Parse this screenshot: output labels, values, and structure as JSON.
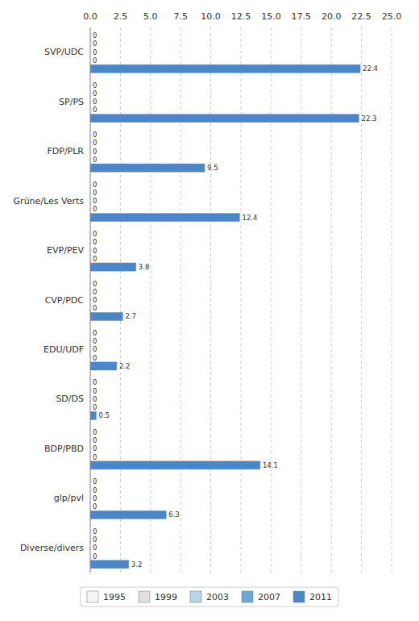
{
  "chart_data": {
    "type": "bar",
    "orientation": "horizontal",
    "categories": [
      "SVP/UDC",
      "SP/PS",
      "FDP/PLR",
      "Grüne/Les Verts",
      "EVP/PEV",
      "CVP/PDC",
      "EDU/UDF",
      "SD/DS",
      "BDP/PBD",
      "glp/pvl",
      "Diverse/divers"
    ],
    "series": [
      {
        "name": "1995",
        "color": "#f5f5f5",
        "values": [
          0,
          0,
          0,
          0,
          0,
          0,
          0,
          0,
          0,
          0,
          0
        ]
      },
      {
        "name": "1999",
        "color": "#e0e0e0",
        "values": [
          0,
          0,
          0,
          0,
          0,
          0,
          0,
          0,
          0,
          0,
          0
        ]
      },
      {
        "name": "2003",
        "color": "#b8d4e8",
        "values": [
          0,
          0,
          0,
          0,
          0,
          0,
          0,
          0,
          0,
          0,
          0
        ]
      },
      {
        "name": "2007",
        "color": "#6aaad4",
        "values": [
          0,
          0,
          0,
          0,
          0,
          0,
          0,
          0,
          0,
          0,
          0
        ]
      },
      {
        "name": "2011",
        "color": "#4a86c8",
        "values": [
          22.4,
          22.3,
          9.5,
          12.4,
          3.8,
          2.7,
          2.2,
          0.5,
          14.1,
          6.3,
          3.2
        ]
      }
    ],
    "xlim": [
      0,
      25
    ],
    "xticks": [
      {
        "value": 0,
        "label": "0.0"
      },
      2.5,
      {
        "value": 5,
        "label": "5.0"
      },
      7.5,
      {
        "value": 10,
        "label": "10.0"
      },
      12.5,
      {
        "value": 15,
        "label": "15.0"
      },
      17.5,
      {
        "value": 20,
        "label": "20.0"
      },
      22.5,
      {
        "value": 25,
        "label": "25.0"
      }
    ],
    "grid": true,
    "legend": "bottom",
    "data_labels": true
  }
}
